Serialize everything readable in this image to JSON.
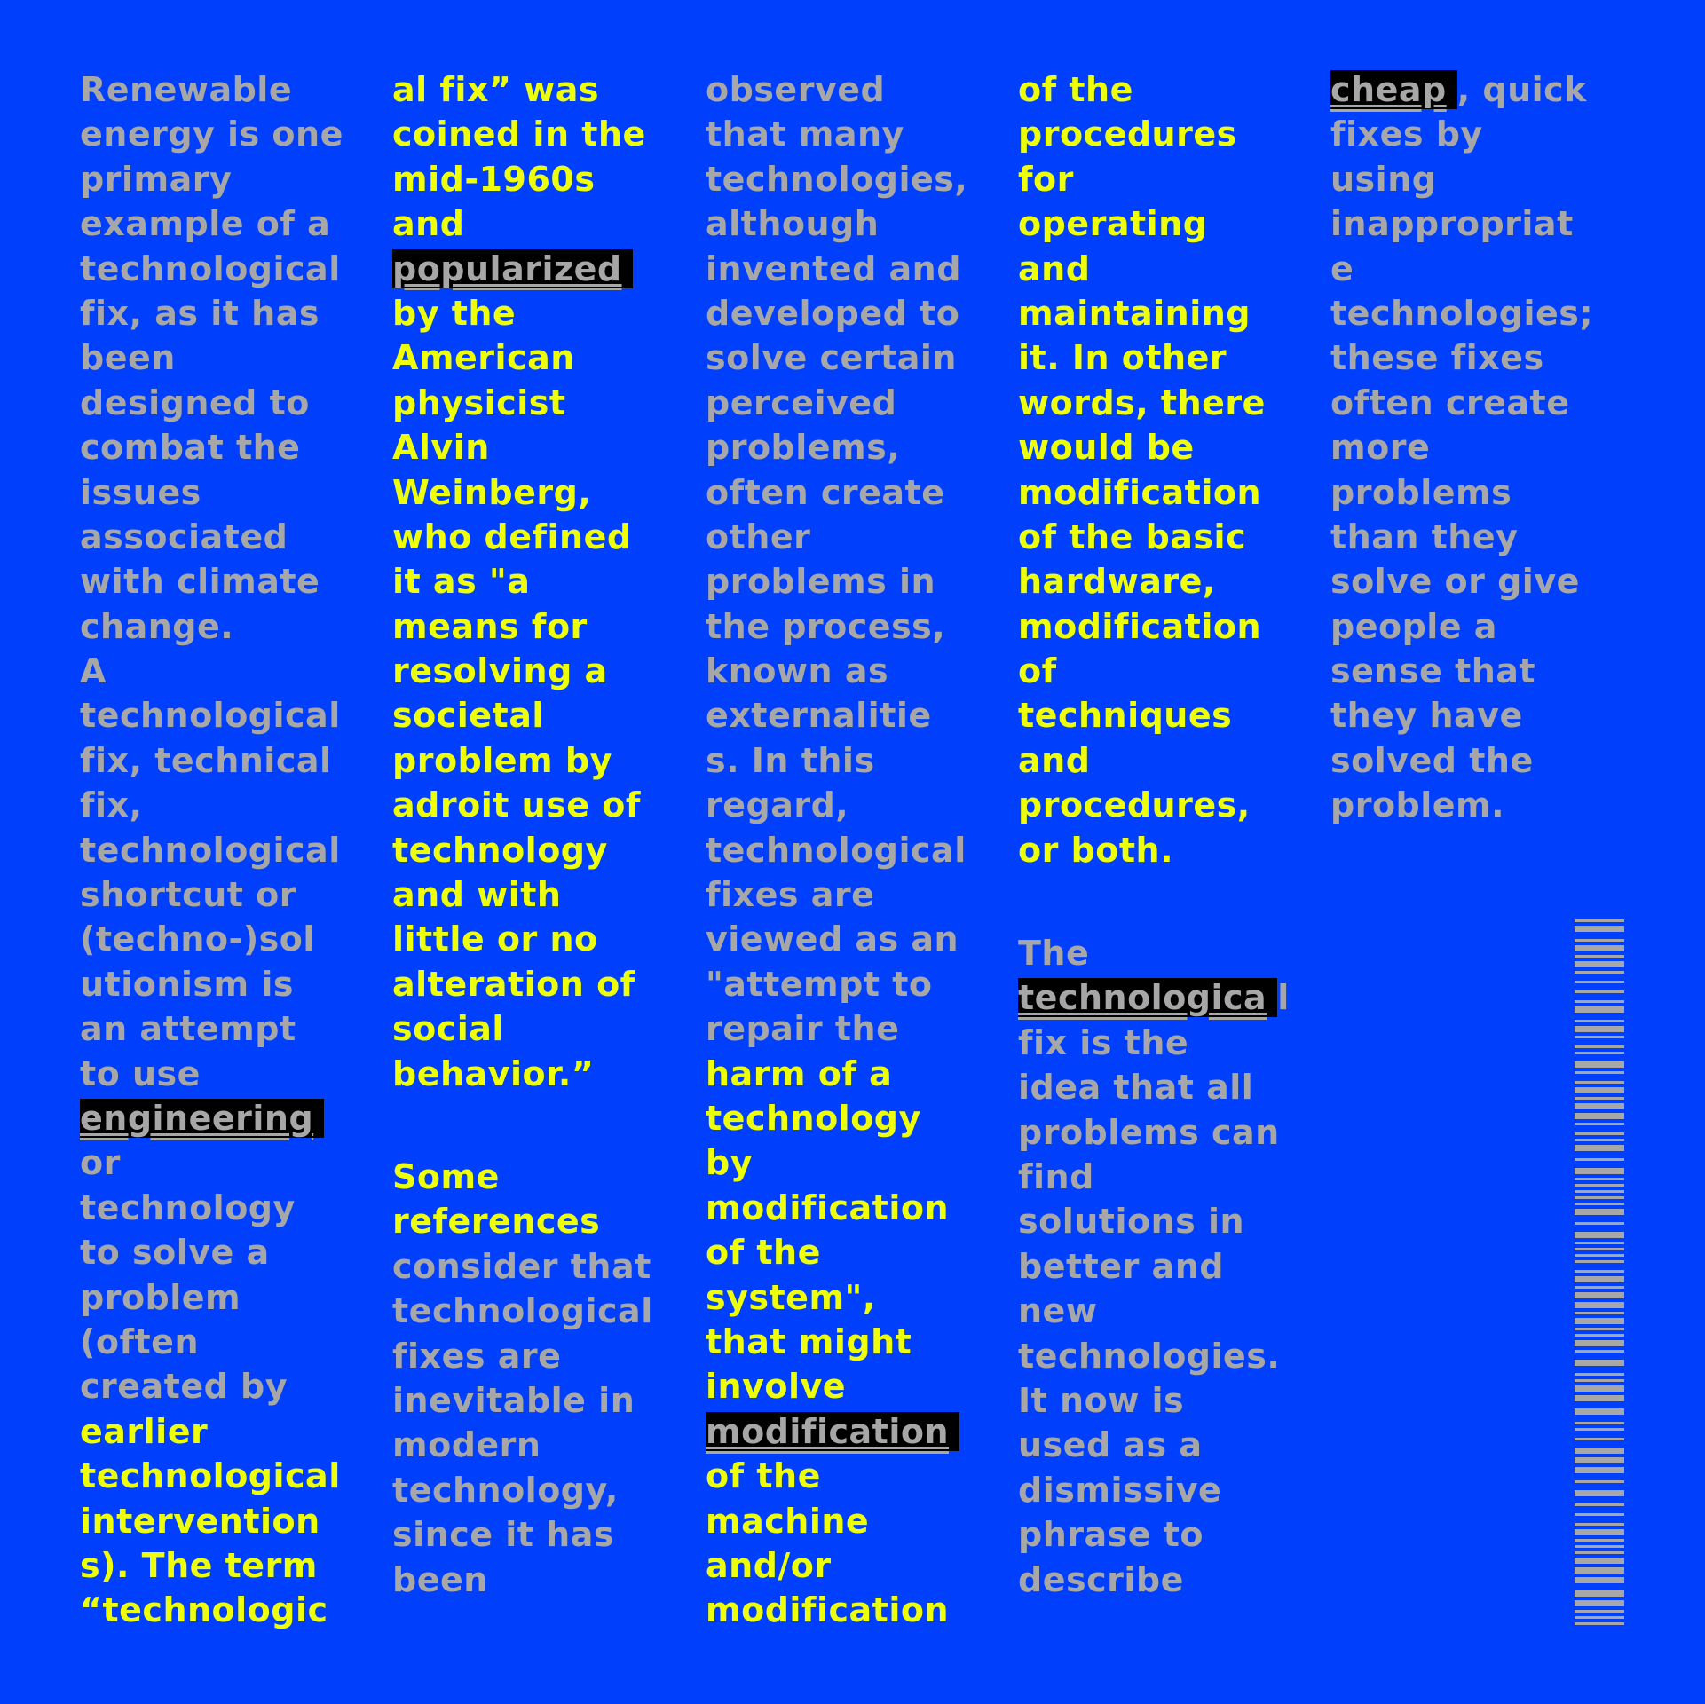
{
  "colors": {
    "background": "#0040fc",
    "gray": "#a7a7a7",
    "yellow": "#eeff0b",
    "highlight": "#000000"
  },
  "columns": [
    [
      [
        [
          "Renewable",
          "g"
        ]
      ],
      [
        [
          "energy is one",
          "g"
        ]
      ],
      [
        [
          "primary",
          "g"
        ]
      ],
      [
        [
          "example of a",
          "g"
        ]
      ],
      [
        [
          "technological",
          "g"
        ]
      ],
      [
        [
          "fix, as it has",
          "g"
        ]
      ],
      [
        [
          "been",
          "g"
        ]
      ],
      [
        [
          "designed to",
          "g"
        ]
      ],
      [
        [
          "combat the",
          "g"
        ]
      ],
      [
        [
          "issues",
          "g"
        ]
      ],
      [
        [
          "associated",
          "g"
        ]
      ],
      [
        [
          "with climate",
          "g"
        ]
      ],
      [
        [
          "change.",
          "g"
        ]
      ],
      [
        [
          "A",
          "g"
        ]
      ],
      [
        [
          "technological",
          "g"
        ]
      ],
      [
        [
          "fix, technical",
          "g"
        ]
      ],
      [
        [
          "fix,",
          "g"
        ]
      ],
      [
        [
          "technological",
          "g"
        ]
      ],
      [
        [
          "shortcut or",
          "g"
        ]
      ],
      [
        [
          "(techno-)sol",
          "g"
        ]
      ],
      [
        [
          "utionism is",
          "g"
        ]
      ],
      [
        [
          "an attempt",
          "g"
        ]
      ],
      [
        [
          "to use",
          "g"
        ]
      ],
      [
        [
          "engineering",
          "hl"
        ]
      ],
      [
        [
          "or",
          "g"
        ]
      ],
      [
        [
          "technology",
          "g"
        ]
      ],
      [
        [
          "to solve a",
          "g"
        ]
      ],
      [
        [
          "problem",
          "g"
        ]
      ],
      [
        [
          "(often",
          "g"
        ]
      ],
      [
        [
          "created by",
          "g"
        ]
      ],
      [
        [
          "earlier",
          "y"
        ]
      ],
      [
        [
          "technological",
          "y"
        ]
      ],
      [
        [
          "intervention",
          "y"
        ]
      ],
      [
        [
          "s). The term",
          "y"
        ]
      ],
      [
        [
          "“technologic",
          "y"
        ]
      ]
    ],
    [
      [
        [
          "al fix” was",
          "y"
        ]
      ],
      [
        [
          "coined in the",
          "y"
        ]
      ],
      [
        [
          "mid-1960s",
          "y"
        ]
      ],
      [
        [
          "and",
          "y"
        ]
      ],
      [
        [
          "popularized",
          "hl"
        ]
      ],
      [
        [
          "by the",
          "y"
        ]
      ],
      [
        [
          "American",
          "y"
        ]
      ],
      [
        [
          "physicist",
          "y"
        ]
      ],
      [
        [
          "Alvin",
          "y"
        ]
      ],
      [
        [
          "Weinberg,",
          "y"
        ]
      ],
      [
        [
          "who defined",
          "y"
        ]
      ],
      [
        [
          "it as \"a",
          "y"
        ]
      ],
      [
        [
          "means for",
          "y"
        ]
      ],
      [
        [
          "resolving a",
          "y"
        ]
      ],
      [
        [
          "societal",
          "y"
        ]
      ],
      [
        [
          "problem by",
          "y"
        ]
      ],
      [
        [
          "adroit use of",
          "y"
        ]
      ],
      [
        [
          "technology",
          "y"
        ]
      ],
      [
        [
          "and with",
          "y"
        ]
      ],
      [
        [
          "little or no",
          "y"
        ]
      ],
      [
        [
          "alteration of",
          "y"
        ]
      ],
      [
        [
          "social",
          "y"
        ]
      ],
      [
        [
          "behavior.”",
          "y"
        ]
      ],
      [],
      [
        [
          "Some",
          "y"
        ]
      ],
      [
        [
          "references",
          "y"
        ]
      ],
      [
        [
          "consider that",
          "g"
        ]
      ],
      [
        [
          "technological",
          "g"
        ]
      ],
      [
        [
          "fixes are",
          "g"
        ]
      ],
      [
        [
          "inevitable in",
          "g"
        ]
      ],
      [
        [
          "modern",
          "g"
        ]
      ],
      [
        [
          "technology,",
          "g"
        ]
      ],
      [
        [
          "since it has",
          "g"
        ]
      ],
      [
        [
          "been",
          "g"
        ]
      ]
    ],
    [
      [
        [
          "observed",
          "g"
        ]
      ],
      [
        [
          "that many",
          "g"
        ]
      ],
      [
        [
          "technologies,",
          "g"
        ]
      ],
      [
        [
          "although",
          "g"
        ]
      ],
      [
        [
          "invented and",
          "g"
        ]
      ],
      [
        [
          "developed to",
          "g"
        ]
      ],
      [
        [
          "solve certain",
          "g"
        ]
      ],
      [
        [
          "perceived",
          "g"
        ]
      ],
      [
        [
          "problems,",
          "g"
        ]
      ],
      [
        [
          "often create",
          "g"
        ]
      ],
      [
        [
          "other",
          "g"
        ]
      ],
      [
        [
          "problems in",
          "g"
        ]
      ],
      [
        [
          "the process,",
          "g"
        ]
      ],
      [
        [
          "known as",
          "g"
        ]
      ],
      [
        [
          "externalitie",
          "g"
        ]
      ],
      [
        [
          "s. In this",
          "g"
        ]
      ],
      [
        [
          "regard,",
          "g"
        ]
      ],
      [
        [
          "technological",
          "g"
        ]
      ],
      [
        [
          "fixes are",
          "g"
        ]
      ],
      [
        [
          "viewed as an",
          "g"
        ]
      ],
      [
        [
          "\"attempt to",
          "g"
        ]
      ],
      [
        [
          "repair the",
          "g"
        ]
      ],
      [
        [
          "harm of a",
          "y"
        ]
      ],
      [
        [
          "technology",
          "y"
        ]
      ],
      [
        [
          "by",
          "y"
        ]
      ],
      [
        [
          "modification",
          "y"
        ]
      ],
      [
        [
          "of the",
          "y"
        ]
      ],
      [
        [
          "system\",",
          "y"
        ]
      ],
      [
        [
          "that might",
          "y"
        ]
      ],
      [
        [
          "involve",
          "y"
        ]
      ],
      [
        [
          "modification",
          "hl"
        ]
      ],
      [
        [
          "of the",
          "y"
        ]
      ],
      [
        [
          "machine",
          "y"
        ]
      ],
      [
        [
          "and/or",
          "y"
        ]
      ],
      [
        [
          "modification",
          "y"
        ]
      ]
    ],
    [
      [
        [
          "of the",
          "y"
        ]
      ],
      [
        [
          "procedures",
          "y"
        ]
      ],
      [
        [
          "for",
          "y"
        ]
      ],
      [
        [
          "operating",
          "y"
        ]
      ],
      [
        [
          "and",
          "y"
        ]
      ],
      [
        [
          "maintaining",
          "y"
        ]
      ],
      [
        [
          "it. In other",
          "y"
        ]
      ],
      [
        [
          "words, there",
          "y"
        ]
      ],
      [
        [
          "would be",
          "y"
        ]
      ],
      [
        [
          "modification",
          "y"
        ]
      ],
      [
        [
          "of the basic",
          "y"
        ]
      ],
      [
        [
          "hardware,",
          "y"
        ]
      ],
      [
        [
          "modification",
          "y"
        ]
      ],
      [
        [
          "of",
          "y"
        ]
      ],
      [
        [
          "techniques",
          "y"
        ]
      ],
      [
        [
          "and",
          "y"
        ]
      ],
      [
        [
          "procedures,",
          "y"
        ]
      ],
      [
        [
          "or both.",
          "y"
        ]
      ],
      [],
      [
        [
          "The",
          "g"
        ]
      ],
      [
        [
          "technologica",
          "hl"
        ],
        [
          "l",
          "g"
        ]
      ],
      [
        [
          "fix is the",
          "g"
        ]
      ],
      [
        [
          "idea that all",
          "g"
        ]
      ],
      [
        [
          "problems can",
          "g"
        ]
      ],
      [
        [
          "find",
          "g"
        ]
      ],
      [
        [
          "solutions in",
          "g"
        ]
      ],
      [
        [
          "better and",
          "g"
        ]
      ],
      [
        [
          "new",
          "g"
        ]
      ],
      [
        [
          "technologies.",
          "g"
        ]
      ],
      [
        [
          "It now is",
          "g"
        ]
      ],
      [
        [
          "used as a",
          "g"
        ]
      ],
      [
        [
          "dismissive",
          "g"
        ]
      ],
      [
        [
          "phrase to",
          "g"
        ]
      ],
      [
        [
          "describe",
          "g"
        ]
      ]
    ],
    [
      [
        [
          "cheap",
          "hl"
        ],
        [
          ", quick",
          "g"
        ]
      ],
      [
        [
          "fixes by",
          "g"
        ]
      ],
      [
        [
          "using",
          "g"
        ]
      ],
      [
        [
          "inappropriat",
          "g"
        ]
      ],
      [
        [
          "e",
          "g"
        ]
      ],
      [
        [
          "technologies;",
          "g"
        ]
      ],
      [
        [
          "these fixes",
          "g"
        ]
      ],
      [
        [
          "often create",
          "g"
        ]
      ],
      [
        [
          "more",
          "g"
        ]
      ],
      [
        [
          "problems",
          "g"
        ]
      ],
      [
        [
          "than they",
          "g"
        ]
      ],
      [
        [
          "solve or give",
          "g"
        ]
      ],
      [
        [
          "people a",
          "g"
        ]
      ],
      [
        [
          "sense that",
          "g"
        ]
      ],
      [
        [
          "they have",
          "g"
        ]
      ],
      [
        [
          "solved the",
          "g"
        ]
      ],
      [
        [
          "problem.",
          "g"
        ]
      ]
    ]
  ]
}
